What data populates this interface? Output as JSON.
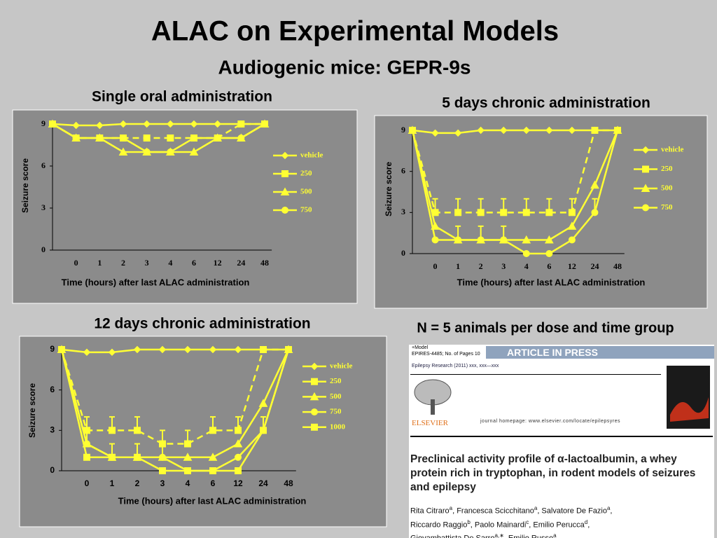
{
  "header": {
    "title": "ALAC on Experimental Models",
    "subtitle": "Audiogenic mice: GEPR-9s"
  },
  "note": "N = 5 animals per dose and time group",
  "chart_data": [
    {
      "type": "line",
      "title": "Single oral administration",
      "y_label": "Seizure score",
      "x_label": "Time (hours) after last ALAC administration",
      "categories": [
        null,
        "0",
        "1",
        "2",
        "3",
        "4",
        "6",
        "12",
        "24",
        "48"
      ],
      "ylim": [
        0,
        9
      ],
      "yticks": [
        0,
        3,
        6,
        9
      ],
      "series": [
        {
          "name": "vehicle",
          "color": "#ffff33",
          "marker": "diamond",
          "dashed": false,
          "values": [
            9,
            8.9,
            8.9,
            9,
            9,
            9,
            9,
            9,
            9,
            9
          ]
        },
        {
          "name": "250",
          "color": "#ffff33",
          "marker": "square",
          "dashed": true,
          "values": [
            9,
            8,
            8,
            8,
            8,
            8,
            8,
            8,
            9,
            9
          ]
        },
        {
          "name": "500",
          "color": "#ffff33",
          "marker": "triangle",
          "dashed": false,
          "values": [
            9,
            8,
            8,
            7,
            7,
            7,
            7,
            8,
            8,
            9
          ]
        },
        {
          "name": "750",
          "color": "#ffff33",
          "marker": "circle",
          "dashed": false,
          "values": [
            9,
            8,
            8,
            8,
            7,
            7,
            8,
            8,
            8,
            9
          ]
        }
      ]
    },
    {
      "type": "line",
      "title": "5 days chronic administration",
      "y_label": "Seizure score",
      "x_label": "Time (hours) after last ALAC administration",
      "categories": [
        null,
        "0",
        "1",
        "2",
        "3",
        "4",
        "6",
        "12",
        "24",
        "48"
      ],
      "ylim": [
        0,
        9
      ],
      "yticks": [
        0,
        3,
        6,
        9
      ],
      "series": [
        {
          "name": "vehicle",
          "color": "#ffff33",
          "marker": "diamond",
          "dashed": false,
          "values": [
            9,
            8.8,
            8.8,
            9,
            9,
            9,
            9,
            9,
            9,
            9
          ]
        },
        {
          "name": "250",
          "color": "#ffff33",
          "marker": "square",
          "dashed": true,
          "values": [
            9,
            3,
            3,
            3,
            3,
            3,
            3,
            3,
            9,
            9
          ],
          "errors": [
            null,
            1,
            1,
            1,
            1,
            1,
            1,
            1,
            null,
            null
          ]
        },
        {
          "name": "500",
          "color": "#ffff33",
          "marker": "triangle",
          "dashed": false,
          "values": [
            9,
            2,
            1,
            1,
            1,
            1,
            1,
            2,
            5,
            9
          ]
        },
        {
          "name": "750",
          "color": "#ffff33",
          "marker": "circle",
          "dashed": false,
          "values": [
            9,
            1,
            1,
            1,
            1,
            0,
            0,
            1,
            3,
            9
          ],
          "errors": [
            null,
            null,
            1,
            1,
            1,
            null,
            null,
            null,
            1,
            null
          ]
        }
      ]
    },
    {
      "type": "line",
      "title": "12 days chronic administration",
      "y_label": "Seizure score",
      "x_label": "Time (hours) after last ALAC administration",
      "categories": [
        null,
        "0",
        "1",
        "2",
        "3",
        "4",
        "6",
        "12",
        "24",
        "48"
      ],
      "ylim": [
        0,
        9
      ],
      "yticks": [
        0,
        3,
        6,
        9
      ],
      "series": [
        {
          "name": "vehicle",
          "color": "#ffff33",
          "marker": "diamond",
          "dashed": false,
          "values": [
            9,
            8.8,
            8.8,
            9,
            9,
            9,
            9,
            9,
            9,
            9
          ]
        },
        {
          "name": "250",
          "color": "#ffff33",
          "marker": "square",
          "dashed": true,
          "values": [
            9,
            3,
            3,
            3,
            2,
            2,
            3,
            3,
            9,
            9
          ],
          "errors": [
            null,
            1,
            1,
            1,
            1,
            1,
            1,
            1,
            null,
            null
          ]
        },
        {
          "name": "500",
          "color": "#ffff33",
          "marker": "triangle",
          "dashed": false,
          "values": [
            9,
            2,
            1,
            1,
            1,
            1,
            1,
            2,
            5,
            9
          ]
        },
        {
          "name": "750",
          "color": "#ffff33",
          "marker": "circle",
          "dashed": false,
          "values": [
            9,
            2,
            1,
            1,
            1,
            0,
            0,
            1,
            3,
            9
          ],
          "errors": [
            null,
            1,
            1,
            1,
            1,
            null,
            null,
            null,
            1,
            null
          ]
        },
        {
          "name": "1000",
          "color": "#ffff33",
          "marker": "square",
          "dashed": false,
          "values": [
            9,
            1,
            1,
            1,
            0,
            0,
            0,
            0,
            3,
            9
          ]
        }
      ]
    }
  ],
  "article": {
    "model": "+Model",
    "code": "EPIRES-4485;   No. of Pages 10",
    "banner": "ARTICLE IN PRESS",
    "journal": "Epilepsy Research (2011) xxx, xxx—xxx",
    "publisher": "ELSEVIER",
    "homepage": "journal homepage: www.elsevier.com/locate/epilepsyres",
    "title": "Preclinical activity profile of α-lactoalbumin, a whey protein rich in tryptophan, in rodent models of seizures and epilepsy",
    "authors": [
      [
        {
          "t": "Rita Citraro",
          "s": "a"
        },
        {
          "t": ", Francesca Scicchitano",
          "s": "a"
        },
        {
          "t": ", Salvatore De Fazio",
          "s": "a"
        },
        {
          "t": ","
        }
      ],
      [
        {
          "t": "Riccardo Raggio",
          "s": "b"
        },
        {
          "t": ", Paolo Mainardi",
          "s": "c"
        },
        {
          "t": ", Emilio Perucca",
          "s": "d"
        },
        {
          "t": ","
        }
      ],
      [
        {
          "t": "Giovambattista De Sarro",
          "s": "a,∗"
        },
        {
          "t": ", Emilio Russo",
          "s": "a"
        }
      ]
    ]
  }
}
